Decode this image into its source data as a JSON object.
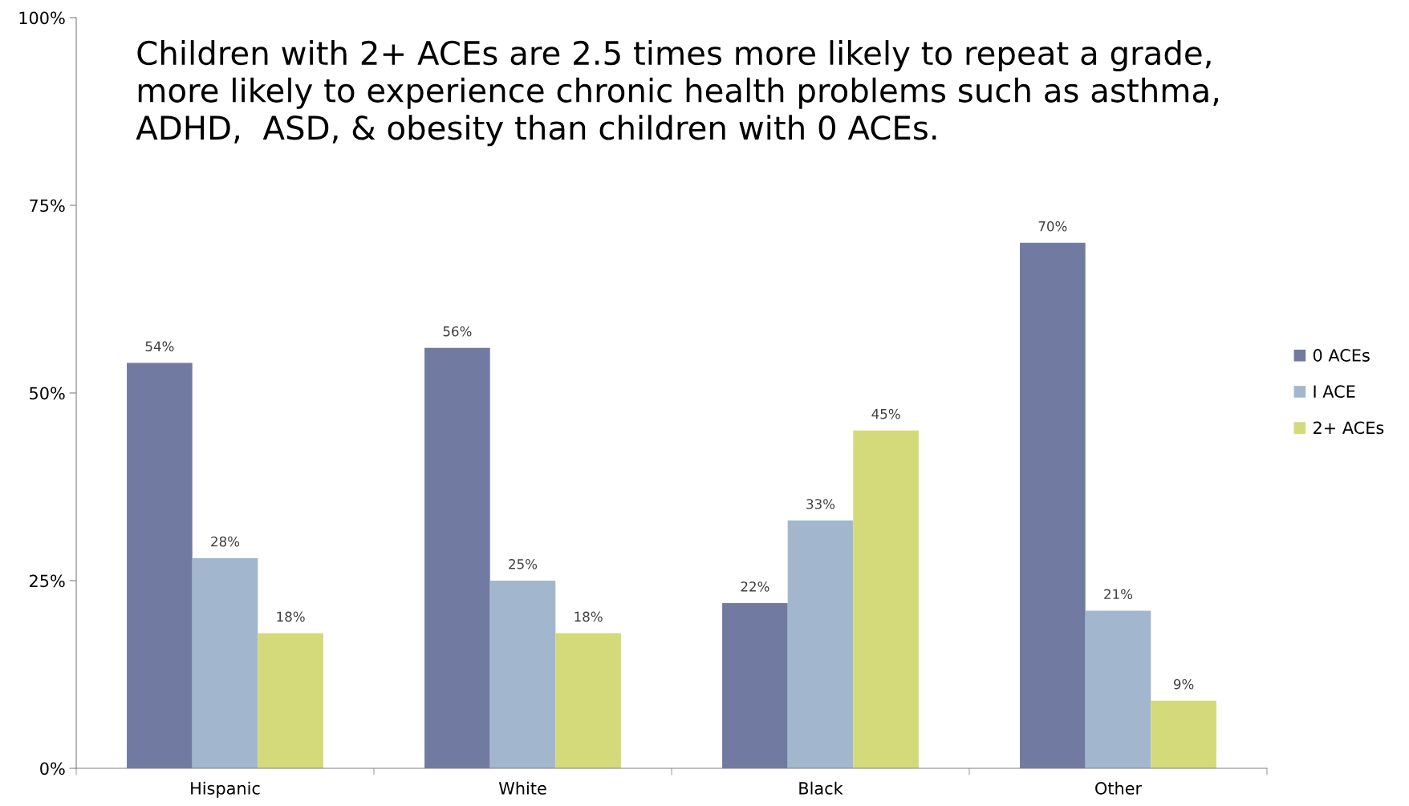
{
  "chart_data": {
    "type": "bar",
    "title": "Children with 2+ ACEs are 2.5 times more likely to repeat a grade,\nmore likely to experience chronic health problems such as asthma,\nADHD,  ASD, & obesity than children with 0 ACEs.",
    "categories": [
      "Hispanic",
      "White",
      "Black",
      "Other"
    ],
    "series": [
      {
        "name": "0 ACEs",
        "color": "#717aa0",
        "values": [
          54,
          56,
          22,
          70
        ],
        "value_labels": [
          "54%",
          "56%",
          "22%",
          "70%"
        ]
      },
      {
        "name": "I ACE",
        "color": "#a2b7cd",
        "values": [
          28,
          25,
          33,
          21
        ],
        "value_labels": [
          "28%",
          "25%",
          "33%",
          "21%"
        ]
      },
      {
        "name": "2+ ACEs",
        "color": "#d4da7a",
        "values": [
          18,
          18,
          45,
          9
        ],
        "value_labels": [
          "18%",
          "18%",
          "45%",
          "9%"
        ]
      }
    ],
    "ylim": [
      0,
      100
    ],
    "yticks": [
      {
        "value": 0,
        "label": "0%"
      },
      {
        "value": 25,
        "label": "25%"
      },
      {
        "value": 50,
        "label": "50%"
      },
      {
        "value": 75,
        "label": "75%"
      },
      {
        "value": 100,
        "label": "100%"
      }
    ],
    "grid": false,
    "legend": "right"
  }
}
